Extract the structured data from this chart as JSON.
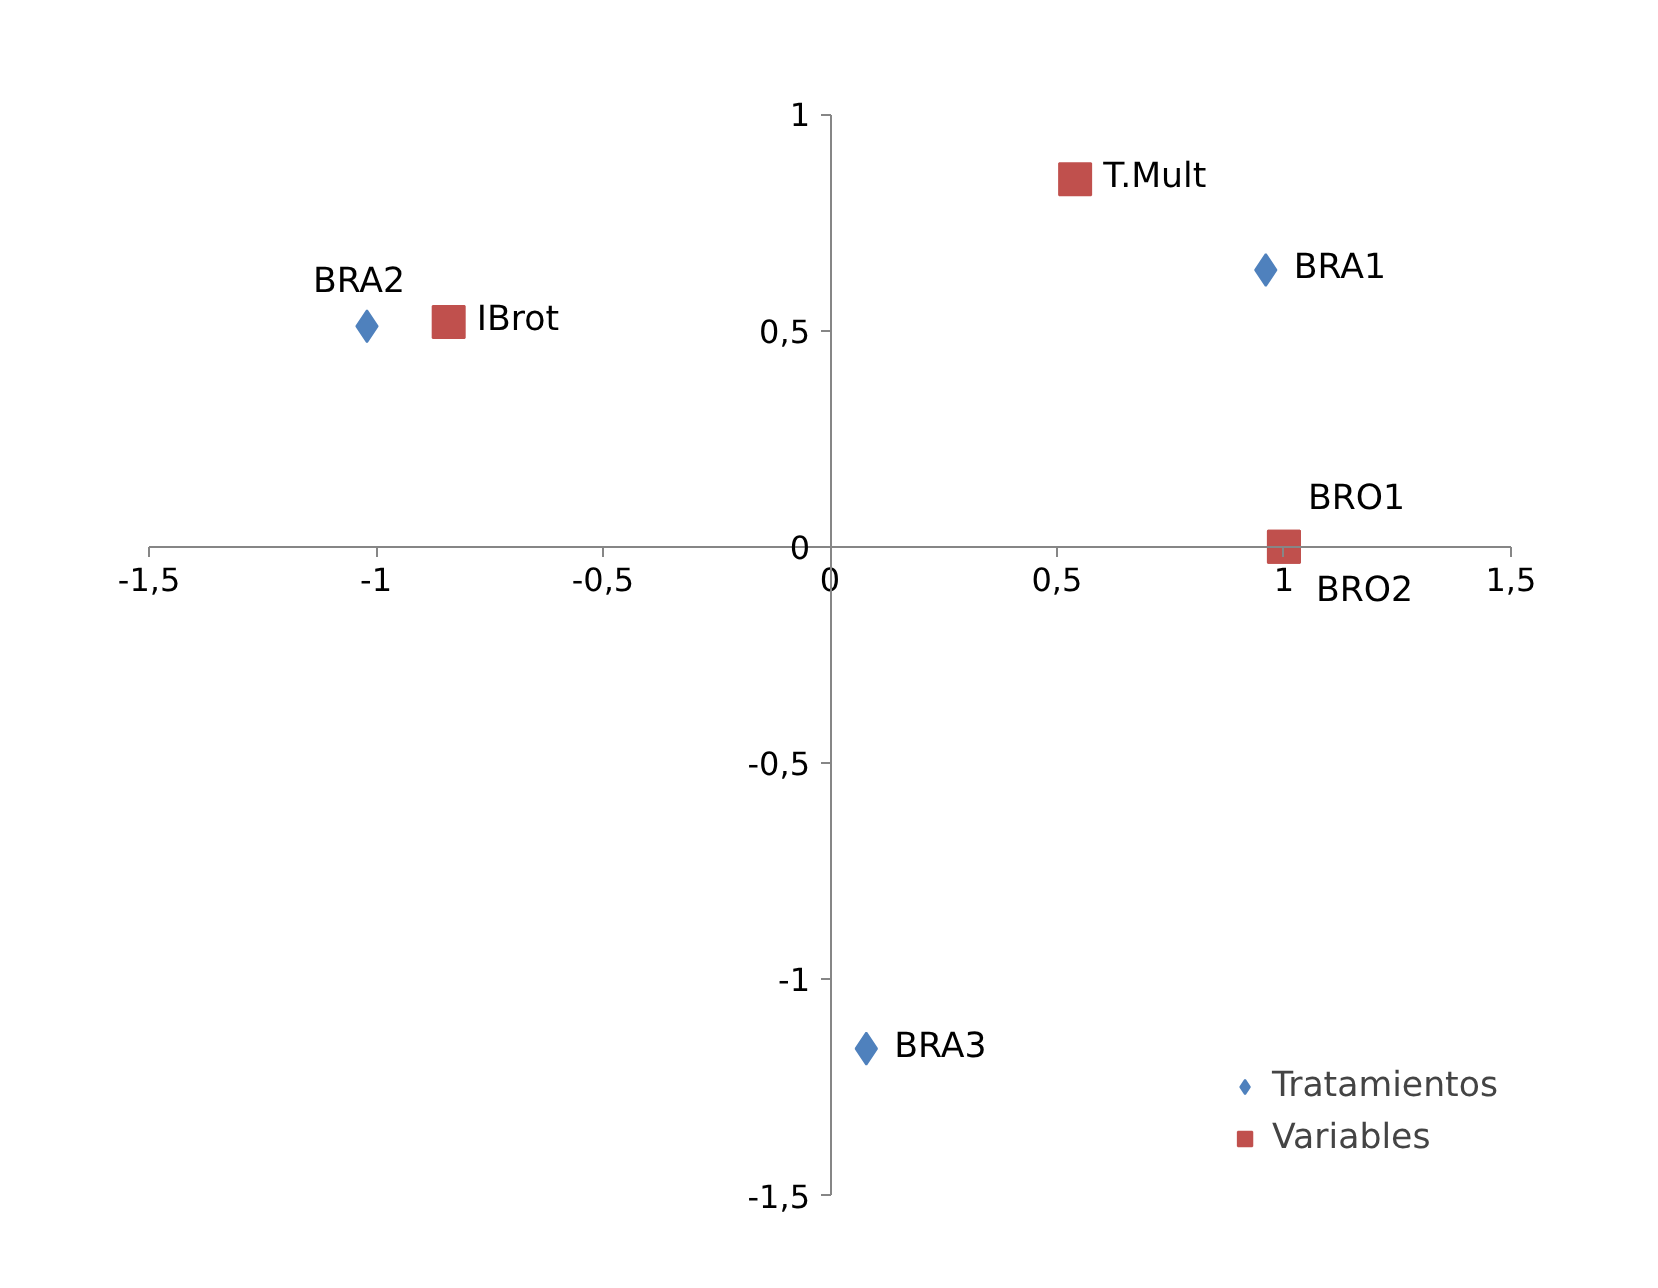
{
  "chart_data": {
    "type": "scatter",
    "series": [
      {
        "name": "Tratamientos",
        "color": "#4f81bd",
        "marker": "diamond",
        "x": [
          0.96,
          -1.02,
          0.08
        ],
        "values": [
          0.64,
          0.51,
          -1.16
        ]
      },
      {
        "name": "Variables",
        "color": "#c0504d",
        "marker": "square",
        "x": [
          0.54,
          -0.84,
          1.0,
          1.0
        ],
        "values": [
          0.85,
          0.52,
          0.0,
          0.0
        ]
      }
    ],
    "annotations": [
      {
        "text": "BRA1",
        "x": 0.96,
        "y": 0.64
      },
      {
        "text": "BRA2",
        "x": -1.02,
        "y": 0.51
      },
      {
        "text": "BRA3",
        "x": 0.08,
        "y": -1.16
      },
      {
        "text": "T.Mult",
        "x": 0.54,
        "y": 0.85
      },
      {
        "text": "IBrot",
        "x": -0.84,
        "y": 0.52
      },
      {
        "text": "BRO1",
        "x": 1.0,
        "y": 0.0
      },
      {
        "text": "BRO2",
        "x": 1.0,
        "y": 0.0
      }
    ],
    "xlim": [
      -1.5,
      1.5
    ],
    "ylim": [
      -1.5,
      1
    ],
    "xticks": [
      {
        "value": -1.5,
        "label": "-1,5"
      },
      -1,
      {
        "value": -0.5,
        "label": "-0,5"
      },
      0,
      {
        "value": 0.5,
        "label": "0,5"
      },
      1,
      {
        "value": 1.5,
        "label": "1,5"
      }
    ],
    "yticks": [
      {
        "value": -1.5,
        "label": "-1,5"
      },
      -1,
      {
        "value": -0.5,
        "label": "-0,5"
      },
      0,
      {
        "value": 0.5,
        "label": "0,5"
      },
      1
    ],
    "grid": false,
    "legend": "bottom right"
  }
}
